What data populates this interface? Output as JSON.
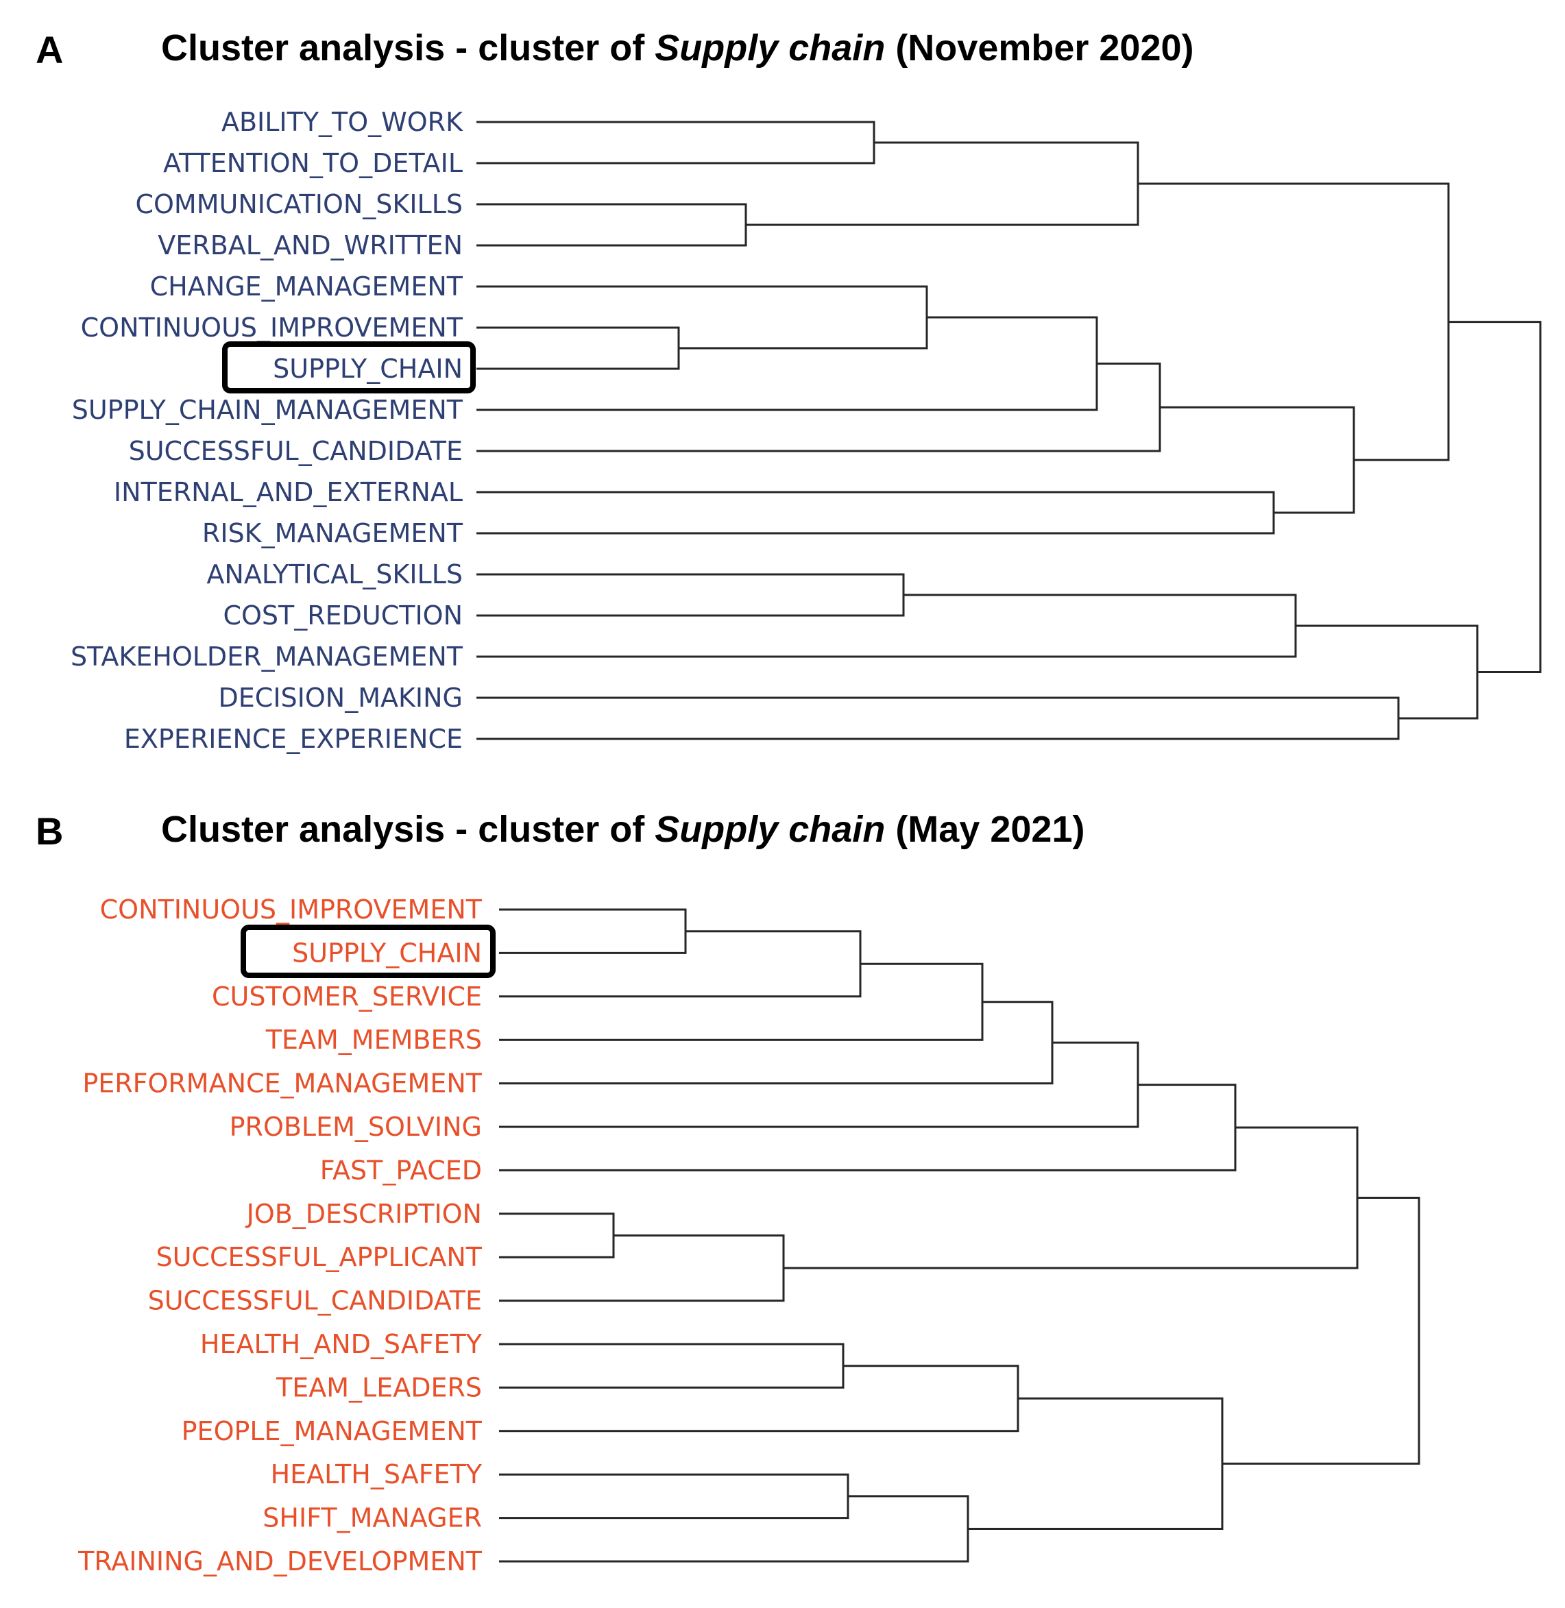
{
  "panels": [
    {
      "id": "A",
      "letter": "A",
      "title_prefix": "Cluster analysis - cluster of ",
      "title_italic": "Supply chain",
      "title_suffix": " (November 2020)",
      "color": "#2e3f73",
      "highlight": "SUPPLY_CHAIN",
      "leaves": [
        "ABILITY_TO_WORK",
        "ATTENTION_TO_DETAIL",
        "COMMUNICATION_SKILLS",
        "VERBAL_AND_WRITTEN",
        "CHANGE_MANAGEMENT",
        "CONTINUOUS_IMPROVEMENT",
        "SUPPLY_CHAIN",
        "SUPPLY_CHAIN_MANAGEMENT",
        "SUCCESSFUL_CANDIDATE",
        "INTERNAL_AND_EXTERNAL",
        "RISK_MANAGEMENT",
        "ANALYTICAL_SKILLS",
        "COST_REDUCTION",
        "STAKEHOLDER_MANAGEMENT",
        "DECISION_MAKING",
        "EXPERIENCE_EXPERIENCE"
      ]
    },
    {
      "id": "B",
      "letter": "B",
      "title_prefix": "Cluster analysis - cluster of ",
      "title_italic": "Supply chain",
      "title_suffix": " (May 2021)",
      "color": "#e8502a",
      "highlight": "SUPPLY_CHAIN",
      "leaves": [
        "CONTINUOUS_IMPROVEMENT",
        "SUPPLY_CHAIN",
        "CUSTOMER_SERVICE",
        "TEAM_MEMBERS",
        "PERFORMANCE_MANAGEMENT",
        "PROBLEM_SOLVING",
        "FAST_PACED",
        "JOB_DESCRIPTION",
        "SUCCESSFUL_APPLICANT",
        "SUCCESSFUL_CANDIDATE",
        "HEALTH_AND_SAFETY",
        "TEAM_LEADERS",
        "PEOPLE_MANAGEMENT",
        "HEALTH_SAFETY",
        "SHIFT_MANAGER",
        "TRAINING_AND_DEVELOPMENT"
      ]
    }
  ]
}
